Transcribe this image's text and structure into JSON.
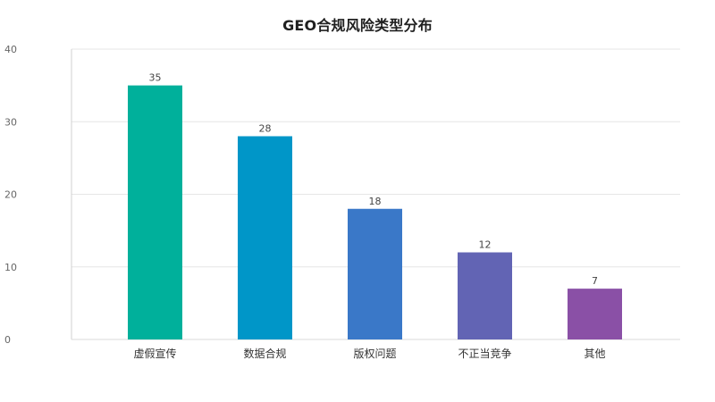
{
  "chart_data": {
    "type": "bar",
    "title": "GEO合规风险类型分布",
    "xlabel": "",
    "ylabel": "",
    "categories": [
      "虚假宣传",
      "数据合规",
      "版权问题",
      "不正当竞争",
      "其他"
    ],
    "values": [
      35,
      28,
      18,
      12,
      7
    ],
    "ylim": [
      0,
      40
    ],
    "yticks": [
      0,
      10,
      20,
      30,
      40
    ],
    "grid": true,
    "legend": "none",
    "colors": [
      "#00b09b",
      "#0096c8",
      "#3a78c8",
      "#6264b4",
      "#8a50a6"
    ]
  }
}
